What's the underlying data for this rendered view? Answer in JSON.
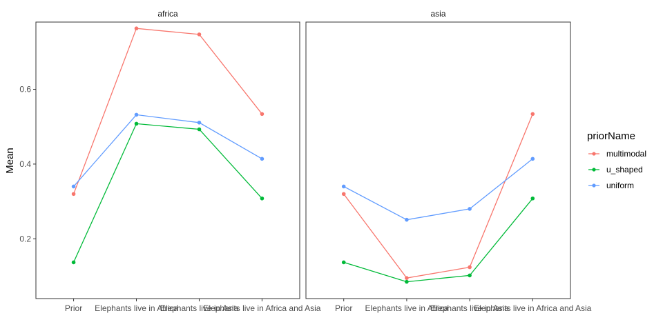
{
  "chart_data": {
    "type": "line",
    "ylabel": "Mean",
    "xlabel": "",
    "ylim": [
      0.04,
      0.78
    ],
    "yticks": [
      0.2,
      0.4,
      0.6
    ],
    "ytick_labels": [
      "0.2",
      "0.4",
      "0.6"
    ],
    "categories": [
      "Prior",
      "Elephants live in Africa",
      "Elephants live in Asia",
      "Elephants live in Africa and Asia"
    ],
    "legend": {
      "title": "priorName",
      "position": "right",
      "entries": [
        {
          "name": "multimodal",
          "color": "#F8766D"
        },
        {
          "name": "u_shaped",
          "color": "#00BA38"
        },
        {
          "name": "uniform",
          "color": "#619CFF"
        }
      ]
    },
    "panels": [
      {
        "title": "africa",
        "series": [
          {
            "name": "multimodal",
            "values": [
              0.32,
              0.763,
              0.747,
              0.534
            ]
          },
          {
            "name": "u_shaped",
            "values": [
              0.137,
              0.508,
              0.493,
              0.308
            ]
          },
          {
            "name": "uniform",
            "values": [
              0.34,
              0.532,
              0.511,
              0.414
            ]
          }
        ]
      },
      {
        "title": "asia",
        "series": [
          {
            "name": "multimodal",
            "values": [
              0.32,
              0.095,
              0.124,
              0.534
            ]
          },
          {
            "name": "u_shaped",
            "values": [
              0.137,
              0.085,
              0.102,
              0.308
            ]
          },
          {
            "name": "uniform",
            "values": [
              0.34,
              0.251,
              0.28,
              0.414
            ]
          }
        ]
      }
    ]
  }
}
